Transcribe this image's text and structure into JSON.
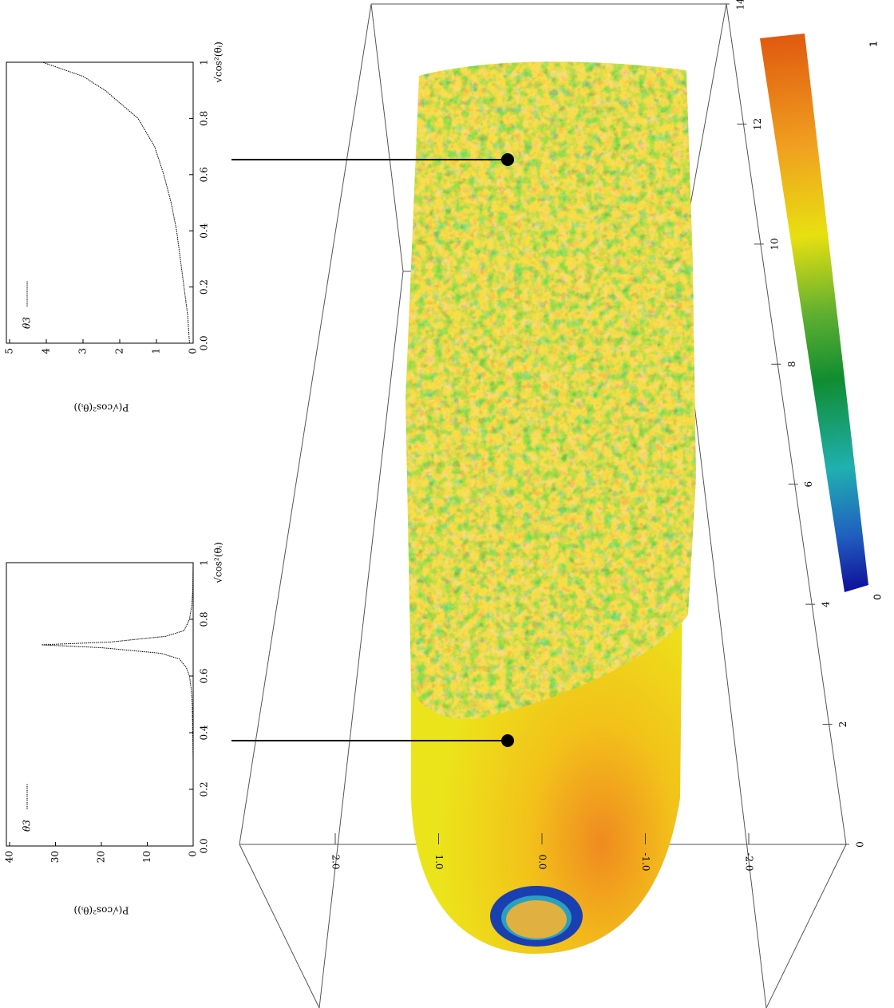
{
  "chart_data": [
    {
      "type": "line",
      "xlabel": "√cos²(θᵢ)",
      "ylabel": "P(√cos²(θᵢ))",
      "legend": "upper left",
      "x": [
        0,
        0.1,
        0.2,
        0.3,
        0.4,
        0.5,
        0.55,
        0.6,
        0.63,
        0.66,
        0.68,
        0.7,
        0.71,
        0.72,
        0.74,
        0.76,
        0.8,
        0.85,
        0.9,
        1
      ],
      "series": [
        {
          "name": "θ3",
          "color": "#000000",
          "values": [
            0,
            0,
            0,
            0,
            0.1,
            0.2,
            0.4,
            0.8,
            1.5,
            3,
            7,
            20,
            33,
            18,
            6,
            2,
            0.8,
            0.3,
            0.1,
            0
          ]
        }
      ],
      "xlim": [
        0,
        1
      ],
      "ylim": [
        0,
        40
      ],
      "xticks": [
        {
          "value": 0,
          "label": "0.0"
        },
        0.2,
        0.4,
        0.6,
        0.8,
        1
      ],
      "yticks": [
        0,
        10,
        20,
        30,
        40
      ]
    },
    {
      "type": "line",
      "xlabel": "√cos²(θᵢ)",
      "ylabel": "P(√cos²(θᵢ))",
      "legend": "upper left",
      "x": [
        0,
        0.1,
        0.2,
        0.3,
        0.4,
        0.5,
        0.6,
        0.7,
        0.8,
        0.9,
        0.95,
        1
      ],
      "series": [
        {
          "name": "θ3",
          "color": "#000000",
          "values": [
            0.1,
            0.15,
            0.25,
            0.35,
            0.45,
            0.6,
            0.8,
            1.05,
            1.5,
            2.4,
            3.0,
            4.1
          ]
        }
      ],
      "xlim": [
        0,
        1
      ],
      "ylim": [
        0,
        5
      ],
      "xticks": [
        {
          "value": 0,
          "label": "0.0"
        },
        0.2,
        0.4,
        0.6,
        0.8,
        1
      ],
      "yticks": [
        0,
        1,
        2,
        3,
        4,
        5
      ]
    }
  ],
  "scene": {
    "axis_ticks": [
      0,
      2,
      4,
      6,
      8,
      10,
      12,
      14
    ],
    "depth_ticks": [
      {
        "value": 2,
        "label": "2.0"
      },
      {
        "value": 1,
        "label": "1.0"
      },
      {
        "value": 0,
        "label": "0.0"
      },
      {
        "value": -1,
        "label": "-1.0"
      },
      {
        "value": -2,
        "label": "-2.0"
      }
    ],
    "colorbar": {
      "ticks": [
        0,
        1
      ]
    }
  }
}
